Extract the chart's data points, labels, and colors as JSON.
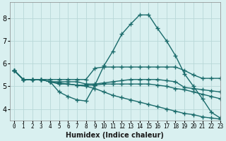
{
  "background_color": "#d9f0f0",
  "grid_color": "#b8d8d8",
  "line_color": "#1a6b6b",
  "marker_style": "+",
  "marker_size": 4,
  "line_width": 1.0,
  "xlabel": "Humidex (Indice chaleur)",
  "xlim": [
    -0.5,
    23
  ],
  "ylim": [
    3.5,
    8.7
  ],
  "yticks": [
    4,
    5,
    6,
    7,
    8
  ],
  "xticks": [
    0,
    1,
    2,
    3,
    4,
    5,
    6,
    7,
    8,
    9,
    10,
    11,
    12,
    13,
    14,
    15,
    16,
    17,
    18,
    19,
    20,
    21,
    22,
    23
  ],
  "series": [
    {
      "x": [
        0,
        1,
        2,
        3,
        4,
        5,
        6,
        7,
        8,
        9,
        10,
        11,
        12,
        13,
        14,
        15,
        16,
        17,
        18,
        19,
        20,
        21,
        22,
        23
      ],
      "y": [
        5.7,
        5.3,
        5.3,
        5.3,
        5.2,
        4.75,
        4.55,
        4.4,
        4.35,
        5.05,
        5.9,
        6.55,
        7.3,
        7.75,
        8.15,
        8.15,
        7.55,
        7.0,
        6.35,
        5.55,
        5.0,
        4.45,
        3.85,
        3.6
      ]
    },
    {
      "x": [
        0,
        1,
        2,
        3,
        4,
        5,
        6,
        7,
        8,
        9,
        10,
        11,
        12,
        13,
        14,
        15,
        16,
        17,
        18,
        19,
        20,
        21,
        22,
        23
      ],
      "y": [
        5.7,
        5.3,
        5.3,
        5.3,
        5.3,
        5.3,
        5.3,
        5.3,
        5.3,
        5.8,
        5.85,
        5.85,
        5.85,
        5.85,
        5.85,
        5.85,
        5.85,
        5.85,
        5.85,
        5.7,
        5.5,
        5.35,
        5.35,
        5.35
      ]
    },
    {
      "x": [
        0,
        1,
        2,
        3,
        4,
        5,
        6,
        7,
        8,
        9,
        10,
        11,
        12,
        13,
        14,
        15,
        16,
        17,
        18,
        19,
        20,
        21,
        22,
        23
      ],
      "y": [
        5.7,
        5.3,
        5.3,
        5.3,
        5.2,
        5.2,
        5.2,
        5.2,
        5.1,
        5.1,
        5.15,
        5.2,
        5.25,
        5.3,
        5.3,
        5.3,
        5.3,
        5.25,
        5.2,
        4.95,
        4.9,
        4.85,
        4.8,
        4.75
      ]
    },
    {
      "x": [
        0,
        1,
        2,
        3,
        4,
        5,
        6,
        7,
        8,
        9,
        10,
        11,
        12,
        13,
        14,
        15,
        16,
        17,
        18,
        19,
        20,
        21,
        22,
        23
      ],
      "y": [
        5.7,
        5.3,
        5.3,
        5.3,
        5.2,
        5.1,
        5.1,
        5.05,
        5.05,
        5.05,
        5.1,
        5.1,
        5.1,
        5.1,
        5.1,
        5.1,
        5.05,
        5.0,
        4.9,
        4.85,
        4.75,
        4.65,
        4.55,
        4.45
      ]
    },
    {
      "x": [
        0,
        1,
        2,
        3,
        4,
        5,
        6,
        7,
        8,
        9,
        10,
        11,
        12,
        13,
        14,
        15,
        16,
        17,
        18,
        19,
        20,
        21,
        22,
        23
      ],
      "y": [
        5.7,
        5.3,
        5.3,
        5.3,
        5.2,
        5.15,
        5.1,
        5.05,
        5.0,
        4.9,
        4.75,
        4.6,
        4.5,
        4.4,
        4.3,
        4.2,
        4.1,
        4.0,
        3.9,
        3.8,
        3.75,
        3.65,
        3.6,
        3.55
      ]
    }
  ]
}
